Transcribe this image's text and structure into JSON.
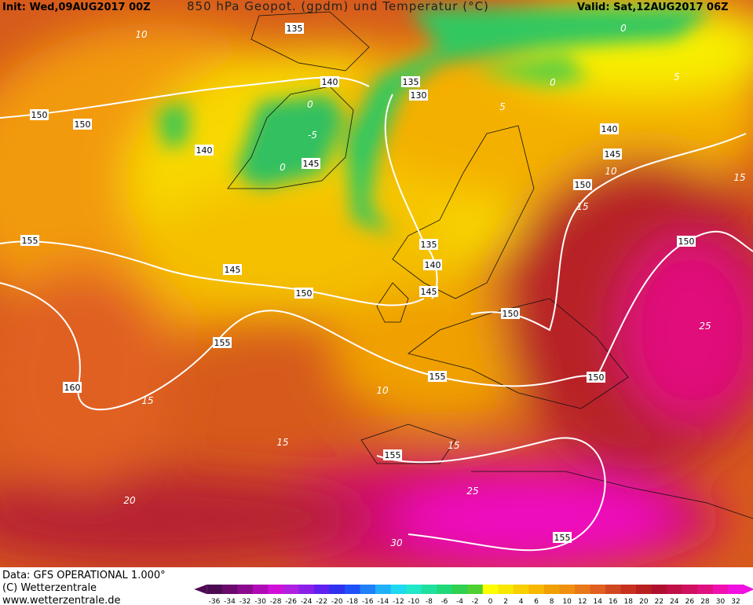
{
  "header": {
    "init": "Init: Wed,09AUG2017 00Z",
    "title": "850 hPa Geopot. (gpdm) und Temperatur (°C)",
    "valid": "Valid: Sat,12AUG2017 06Z"
  },
  "geopotential_labels": [
    135,
    140,
    135,
    130,
    150,
    150,
    140,
    145,
    140,
    145,
    150,
    155,
    150,
    135,
    140,
    145,
    145,
    150,
    150,
    155,
    160,
    155,
    150,
    155,
    155
  ],
  "temperature_labels": [
    10,
    0,
    0,
    5,
    5,
    0,
    -5,
    0,
    10,
    15,
    15,
    10,
    15,
    15,
    15,
    25,
    25,
    20,
    30
  ],
  "footer": {
    "data": "Data: GFS OPERATIONAL 1.000°",
    "copyright": "(C) Wetterzentrale",
    "url": "www.wetterzentrale.de"
  },
  "colorbar": {
    "labels": [
      -36,
      -34,
      -32,
      -30,
      -28,
      -26,
      -24,
      -22,
      -20,
      -18,
      -16,
      -14,
      -12,
      -10,
      -8,
      -6,
      -4,
      -2,
      0,
      2,
      4,
      6,
      8,
      10,
      12,
      14,
      16,
      18,
      20,
      22,
      24,
      26,
      28,
      30,
      32
    ],
    "colors": [
      "#4b0a52",
      "#6a0a6e",
      "#8a0a8e",
      "#b00ab4",
      "#d010d8",
      "#b020e0",
      "#8a20e8",
      "#6020f0",
      "#3030f0",
      "#2050f8",
      "#2080f8",
      "#20b0f8",
      "#20d8f0",
      "#20e8c8",
      "#20e0a0",
      "#20d878",
      "#30d050",
      "#50d030",
      "#ffff00",
      "#f8e800",
      "#f8d000",
      "#f8b800",
      "#f0a000",
      "#f09010",
      "#e87818",
      "#e06020",
      "#d04820",
      "#c83020",
      "#b82020",
      "#b01030",
      "#c01048",
      "#d01060",
      "#e01080",
      "#f010b0",
      "#f010e0"
    ]
  }
}
